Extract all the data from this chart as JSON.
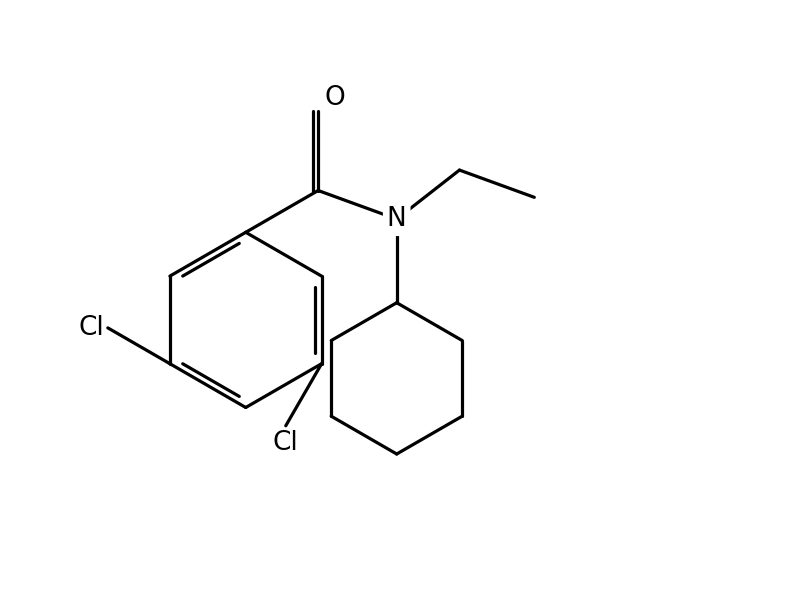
{
  "background_color": "#ffffff",
  "line_color": "#000000",
  "line_width": 2.3,
  "font_size": 19,
  "figsize": [
    8.1,
    6.0
  ],
  "dpi": 100,
  "xlim": [
    0.0,
    10.0
  ],
  "ylim": [
    0.0,
    7.5
  ]
}
